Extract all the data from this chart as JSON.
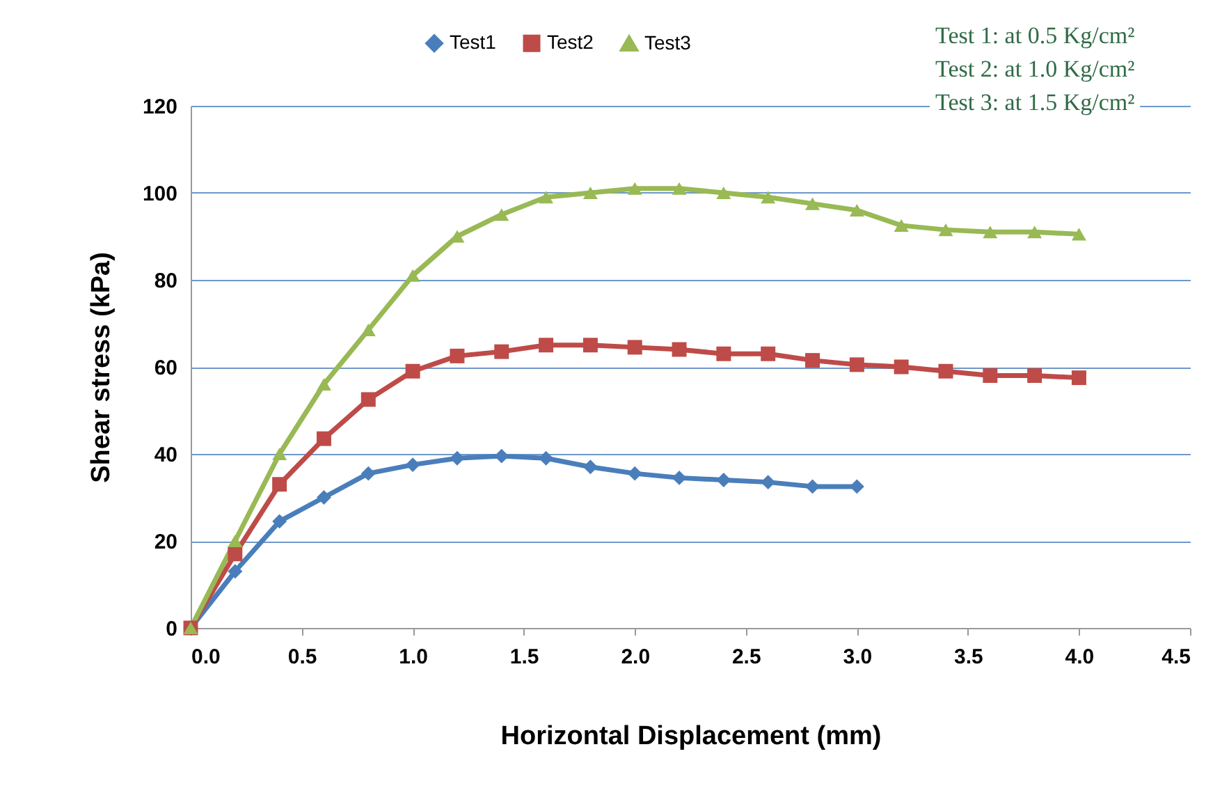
{
  "chart_data": {
    "type": "line",
    "xlabel": "Horizontal Displacement (mm)",
    "ylabel": "Shear stress (kPa)",
    "x": [
      0,
      0.2,
      0.4,
      0.6,
      0.8,
      1.0,
      1.2,
      1.4,
      1.6,
      1.8,
      2.0,
      2.2,
      2.4,
      2.6,
      2.8,
      3.0,
      3.2,
      3.4,
      3.6,
      3.8,
      4.0
    ],
    "series": [
      {
        "name": "Test1",
        "color": "#4a7ebb",
        "marker": "diamond",
        "values": [
          0,
          13,
          24.5,
          30,
          35.5,
          37.5,
          39,
          39.5,
          39,
          37,
          35.5,
          34.5,
          34,
          33.5,
          32.5,
          32.5,
          null,
          null,
          null,
          null,
          null
        ]
      },
      {
        "name": "Test2",
        "color": "#be4b48",
        "marker": "square",
        "values": [
          0,
          17,
          33,
          43.5,
          52.5,
          59,
          62.5,
          63.5,
          65,
          65,
          64.5,
          64,
          63,
          63,
          61.5,
          60.5,
          60,
          59,
          58,
          58,
          57.5
        ]
      },
      {
        "name": "Test3",
        "color": "#98b954",
        "marker": "triangle",
        "values": [
          0,
          20,
          40,
          56,
          68.5,
          81,
          90,
          95,
          99,
          100,
          101,
          101,
          100,
          99,
          97.5,
          96,
          92.5,
          91.5,
          91,
          91,
          90.5
        ]
      }
    ],
    "xlim": [
      0,
      4.5
    ],
    "xticks": [
      {
        "value": 0,
        "label": "0.0"
      },
      {
        "value": 0.5,
        "label": "0.5"
      },
      {
        "value": 1,
        "label": "1.0"
      },
      {
        "value": 1.5,
        "label": "1.5"
      },
      {
        "value": 2,
        "label": "2.0"
      },
      {
        "value": 2.5,
        "label": "2.5"
      },
      {
        "value": 3,
        "label": "3.0"
      },
      {
        "value": 3.5,
        "label": "3.5"
      },
      {
        "value": 4,
        "label": "4.0"
      },
      {
        "value": 4.5,
        "label": "4.5"
      }
    ],
    "ylim": [
      0,
      120
    ],
    "yticks": [
      0,
      20,
      40,
      60,
      80,
      100,
      120
    ],
    "grid": "y",
    "legend": "top",
    "annotations": [
      "Test 1: at 0.5 Kg/cm²",
      "Test 2: at 1.0 Kg/cm²",
      "Test 3: at 1.5 Kg/cm²"
    ]
  }
}
